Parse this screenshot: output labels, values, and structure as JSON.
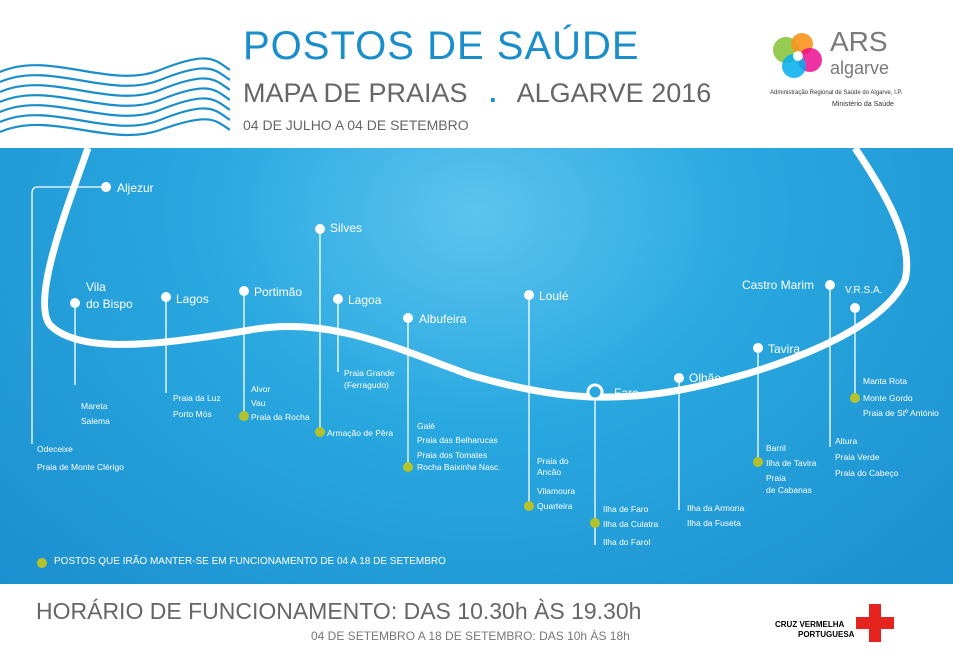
{
  "header": {
    "title": "POSTOS DE SAÚDE",
    "subtitle_left": "MAPA DE PRAIAS",
    "subtitle_sep": ".",
    "subtitle_right": "ALGARVE 2016",
    "dates": "04 DE JULHO A 04 DE SETEMBRO"
  },
  "logo": {
    "name": "ARS",
    "sub": "algarve",
    "line1": "Administração Regional de Saúde do Algarve, I.P.",
    "line2": "Ministério da Saúde"
  },
  "towns": {
    "aljezur": "Aljezur",
    "vila_do_bispo_1": "Vila",
    "vila_do_bispo_2": "do Bispo",
    "lagos": "Lagos",
    "portimao": "Portimão",
    "silves": "Silves",
    "lagoa": "Lagoa",
    "albufeira": "Albufeira",
    "loule": "Loulé",
    "faro": "Faro",
    "olhao": "Olhão",
    "tavira": "Tavira",
    "castro_marim": "Castro Marim",
    "vrsa": "V.R.S.A."
  },
  "beaches": {
    "aljezur": [
      "Odeceixe",
      "Praia de Monte Clérigo"
    ],
    "vila_do_bispo": [
      "Mareta",
      "Salema"
    ],
    "lagos": [
      "Praia da Luz",
      "Porto Mós"
    ],
    "portimao": [
      "Alvor",
      "Vau",
      "Praia da Rocha"
    ],
    "silves": [
      "Armação de Pêra"
    ],
    "lagoa": [
      "Praia Grande",
      "(Ferragudo)"
    ],
    "albufeira": [
      "Galé",
      "Praia das Belharucas",
      "Praia dos Tomates",
      "Rocha Baixinha Nasc."
    ],
    "loule": [
      "Praia do",
      "Ancão",
      "Vilamoura",
      "Quarteira"
    ],
    "faro": [
      "Ilha de Faro",
      "Ilha da Culatra",
      "Ilha do Farol"
    ],
    "olhao": [
      "Ilha da Armona",
      "Ilha da Fuseta"
    ],
    "tavira": [
      "Barril",
      "Ilha de Tavira",
      "Praia",
      "de Cabanas"
    ],
    "castro_marim": [
      "Altura",
      "Praia Verde",
      "Praia do Cabeço"
    ],
    "vrsa": [
      "Manta Rota",
      "Monte Gordo",
      "Praia de Stº António"
    ]
  },
  "legend": "POSTOS QUE IRÃO MANTER-SE EM FUNCIONAMENTO DE 04 A 18 DE SETEMBRO",
  "footer": {
    "hours": "HORÁRIO DE FUNCIONAMENTO: DAS 10.30h ÀS 19.30h",
    "hours_sep": "04 DE SETEMBRO A 18 DE SETEMBRO: DAS 10h ÀS 18h",
    "cvp_line1": "CRUZ VERMELHA",
    "cvp_line2": "PORTUGUESA"
  },
  "colors": {
    "title_blue": "#1a8ecb",
    "sea_blue": "#29a8e0",
    "marker_green": "#b5c22a",
    "cross_red": "#e52420"
  }
}
